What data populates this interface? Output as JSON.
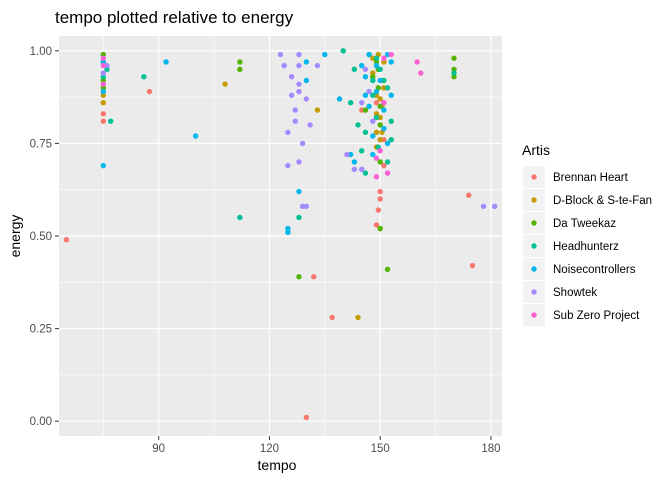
{
  "chart_data": {
    "type": "scatter",
    "title": "tempo plotted relative to energy",
    "xlabel": "tempo",
    "ylabel": "energy",
    "xlim": [
      63,
      183
    ],
    "ylim": [
      -0.04,
      1.04
    ],
    "x_ticks": [
      90,
      120,
      150,
      180
    ],
    "x_tick_labels": [
      "90",
      "120",
      "150",
      "180"
    ],
    "y_ticks": [
      0,
      0.25,
      0.5,
      0.75,
      1.0
    ],
    "y_tick_labels": [
      "0.00",
      "0.25",
      "0.50",
      "0.75",
      "1.00"
    ],
    "grid": true,
    "legend": {
      "title": "Artis",
      "placement": "right"
    },
    "series": [
      {
        "name": "Brennan Heart",
        "color": "#F8766D",
        "points": [
          [
            65,
            0.49
          ],
          [
            75,
            0.83
          ],
          [
            75,
            0.81
          ],
          [
            75,
            0.97
          ],
          [
            87.5,
            0.89
          ],
          [
            130,
            0.01
          ],
          [
            132,
            0.39
          ],
          [
            137,
            0.28
          ],
          [
            145,
            0.84
          ],
          [
            149,
            0.86
          ],
          [
            149,
            0.53
          ],
          [
            149.5,
            0.57
          ],
          [
            150,
            0.62
          ],
          [
            150,
            0.6
          ],
          [
            151,
            0.76
          ],
          [
            151,
            0.69
          ],
          [
            174,
            0.61
          ],
          [
            175,
            0.42
          ]
        ]
      },
      {
        "name": "D-Block & S-te-Fan",
        "color": "#C49A00",
        "points": [
          [
            75,
            0.86
          ],
          [
            75,
            0.88
          ],
          [
            108,
            0.91
          ],
          [
            133,
            0.84
          ],
          [
            144,
            0.28
          ],
          [
            148,
            0.98
          ],
          [
            148,
            0.94
          ],
          [
            149,
            0.88
          ],
          [
            149,
            0.83
          ],
          [
            149,
            0.78
          ],
          [
            149,
            0.74
          ],
          [
            149.5,
            0.99
          ],
          [
            149.5,
            0.95
          ],
          [
            149.5,
            0.9
          ],
          [
            150,
            0.87
          ],
          [
            150,
            0.82
          ],
          [
            150,
            0.76
          ],
          [
            150,
            0.52
          ],
          [
            150.5,
            0.92
          ],
          [
            150.5,
            0.85
          ],
          [
            150.5,
            0.78
          ],
          [
            151,
            0.97
          ],
          [
            151,
            0.9
          ],
          [
            151,
            0.86
          ]
        ]
      },
      {
        "name": "Da Tweekaz",
        "color": "#53B400",
        "points": [
          [
            75,
            0.9
          ],
          [
            75,
            0.92
          ],
          [
            75,
            0.99
          ],
          [
            112,
            0.97
          ],
          [
            112,
            0.95
          ],
          [
            128,
            0.39
          ],
          [
            146,
            0.84
          ],
          [
            148,
            0.93
          ],
          [
            149,
            0.97
          ],
          [
            149.5,
            0.95
          ],
          [
            149.5,
            0.9
          ],
          [
            150,
            0.85
          ],
          [
            150,
            0.8
          ],
          [
            150,
            0.7
          ],
          [
            150,
            0.52
          ],
          [
            152,
            0.41
          ],
          [
            170,
            0.93
          ],
          [
            170,
            0.98
          ],
          [
            170,
            0.95
          ]
        ]
      },
      {
        "name": "Headhunterz",
        "color": "#00C094",
        "points": [
          [
            75,
            0.93
          ],
          [
            76,
            0.95
          ],
          [
            77,
            0.81
          ],
          [
            86,
            0.93
          ],
          [
            112,
            0.55
          ],
          [
            128,
            0.55
          ],
          [
            140,
            1.0
          ],
          [
            142,
            0.86
          ],
          [
            143,
            0.95
          ],
          [
            144,
            0.8
          ],
          [
            145,
            0.73
          ],
          [
            146,
            0.78
          ],
          [
            146,
            0.67
          ],
          [
            147,
            0.99
          ],
          [
            148,
            0.92
          ],
          [
            148,
            0.88
          ],
          [
            149,
            0.98
          ],
          [
            149,
            0.82
          ],
          [
            149.5,
            0.74
          ],
          [
            150,
            0.95
          ],
          [
            151,
            0.92
          ],
          [
            152,
            0.7
          ],
          [
            152,
            0.9
          ],
          [
            153,
            0.76
          ],
          [
            153,
            0.81
          ],
          [
            170,
            0.94
          ]
        ]
      },
      {
        "name": "Noisecontrollers",
        "color": "#00B6EB",
        "points": [
          [
            75,
            0.69
          ],
          [
            75,
            0.97
          ],
          [
            75,
            0.89
          ],
          [
            92,
            0.97
          ],
          [
            100,
            0.77
          ],
          [
            125,
            0.51
          ],
          [
            125,
            0.52
          ],
          [
            128,
            0.62
          ],
          [
            130,
            0.97
          ],
          [
            130,
            0.92
          ],
          [
            135,
            0.99
          ],
          [
            139,
            0.87
          ],
          [
            142,
            0.72
          ],
          [
            143,
            0.7
          ],
          [
            145,
            0.96
          ],
          [
            146,
            0.93
          ],
          [
            146,
            0.88
          ],
          [
            147,
            0.99
          ],
          [
            147,
            0.85
          ],
          [
            148,
            0.77
          ],
          [
            148,
            0.72
          ],
          [
            149,
            0.96
          ],
          [
            149,
            0.89
          ],
          [
            150,
            0.92
          ],
          [
            151,
            0.84
          ],
          [
            151,
            0.79
          ],
          [
            152,
            0.99
          ],
          [
            152,
            0.75
          ],
          [
            153,
            0.97
          ],
          [
            153,
            0.88
          ]
        ]
      },
      {
        "name": "Showtek",
        "color": "#A58AFF",
        "points": [
          [
            75,
            0.94
          ],
          [
            76,
            0.96
          ],
          [
            123,
            0.99
          ],
          [
            124,
            0.96
          ],
          [
            125,
            0.78
          ],
          [
            125,
            0.69
          ],
          [
            126,
            0.93
          ],
          [
            126,
            0.88
          ],
          [
            127,
            0.81
          ],
          [
            127,
            0.84
          ],
          [
            128,
            0.99
          ],
          [
            128,
            0.96
          ],
          [
            128,
            0.91
          ],
          [
            128,
            0.89
          ],
          [
            128,
            0.7
          ],
          [
            129,
            0.75
          ],
          [
            129,
            0.58
          ],
          [
            130,
            0.58
          ],
          [
            130,
            0.87
          ],
          [
            131,
            0.8
          ],
          [
            133,
            0.96
          ],
          [
            141,
            0.72
          ],
          [
            143,
            0.68
          ],
          [
            145,
            0.68
          ],
          [
            145,
            0.86
          ],
          [
            146,
            0.95
          ],
          [
            147,
            0.89
          ],
          [
            148,
            0.81
          ],
          [
            178,
            0.58
          ],
          [
            181,
            0.58
          ]
        ]
      },
      {
        "name": "Sub Zero Project",
        "color": "#FB61D7",
        "points": [
          [
            75,
            0.96
          ],
          [
            75,
            0.98
          ],
          [
            75,
            0.91
          ],
          [
            149,
            0.71
          ],
          [
            149,
            0.66
          ],
          [
            150,
            0.73
          ],
          [
            151,
            0.98
          ],
          [
            151,
            0.86
          ],
          [
            152,
            0.67
          ],
          [
            153,
            0.99
          ],
          [
            160,
            0.97
          ],
          [
            161,
            0.94
          ]
        ]
      }
    ]
  }
}
